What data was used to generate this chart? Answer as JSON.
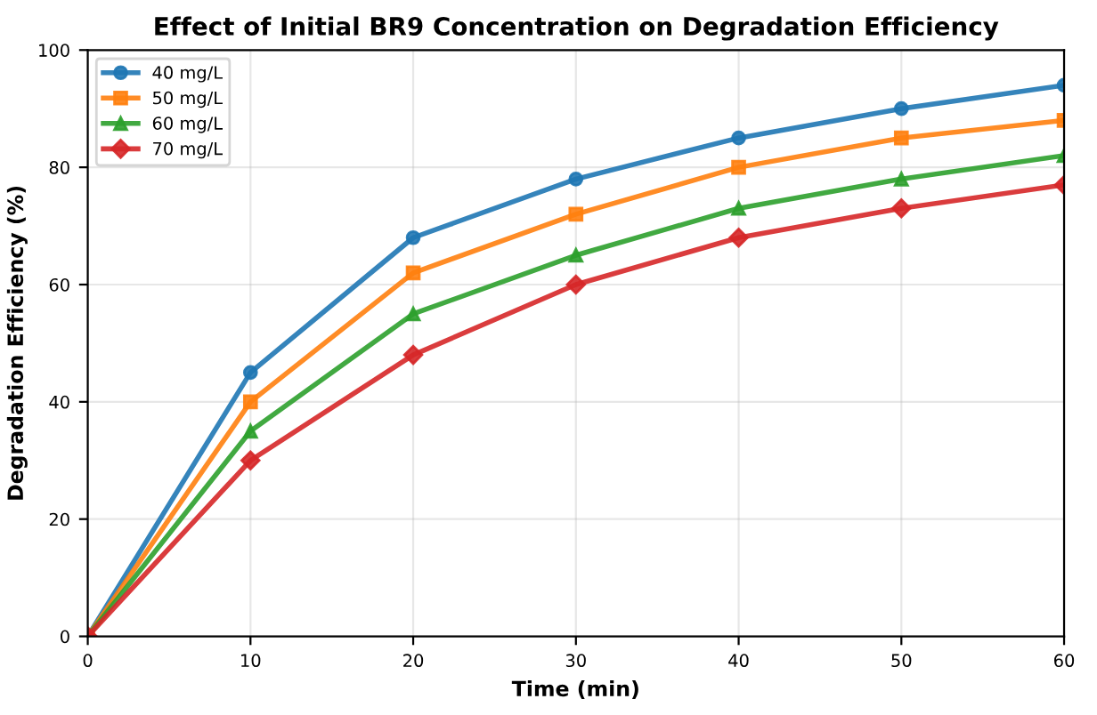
{
  "chart_data": {
    "type": "line",
    "title": "Effect of Initial BR9 Concentration on Degradation Efficiency",
    "xlabel": "Time (min)",
    "ylabel": "Degradation Efficiency (%)",
    "x": [
      0,
      10,
      20,
      30,
      40,
      50,
      60
    ],
    "series": [
      {
        "name": "40 mg/L",
        "color": "#1f77b4",
        "marker": "circle",
        "values": [
          0,
          45,
          68,
          78,
          85,
          90,
          94
        ]
      },
      {
        "name": "50 mg/L",
        "color": "#ff7f0e",
        "marker": "square",
        "values": [
          0,
          40,
          62,
          72,
          80,
          85,
          88
        ]
      },
      {
        "name": "60 mg/L",
        "color": "#2ca02c",
        "marker": "triangle",
        "values": [
          0,
          35,
          55,
          65,
          73,
          78,
          82
        ]
      },
      {
        "name": "70 mg/L",
        "color": "#d62728",
        "marker": "diamond",
        "values": [
          0,
          30,
          48,
          60,
          68,
          73,
          77
        ]
      }
    ],
    "xlim": [
      0,
      60
    ],
    "xticks": [
      0,
      10,
      20,
      30,
      40,
      50,
      60
    ],
    "ylim": [
      0,
      100
    ],
    "yticks": [
      0,
      20,
      40,
      60,
      80,
      100
    ],
    "grid": true,
    "legend": "top left",
    "line_style": "solid"
  }
}
